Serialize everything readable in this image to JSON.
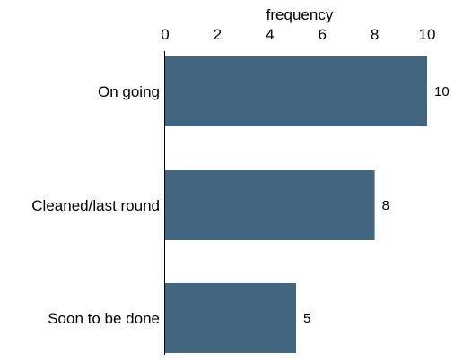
{
  "chart_data": {
    "type": "bar",
    "orientation": "horizontal",
    "categories": [
      "On going",
      "Cleaned/last round",
      "Soon to be done"
    ],
    "values": [
      10,
      8,
      5
    ],
    "data_labels": [
      "10",
      "8",
      "5"
    ],
    "title": "",
    "xlabel": "frequency",
    "ylabel": "",
    "xlim": [
      0,
      10
    ],
    "x_ticks": [
      0,
      2,
      4,
      6,
      8,
      10
    ],
    "x_tick_labels": [
      "0",
      "2",
      "4",
      "6",
      "8",
      "10"
    ],
    "x_axis_position": "top",
    "grid": false,
    "legend": "none",
    "bar_color": "#426580"
  }
}
